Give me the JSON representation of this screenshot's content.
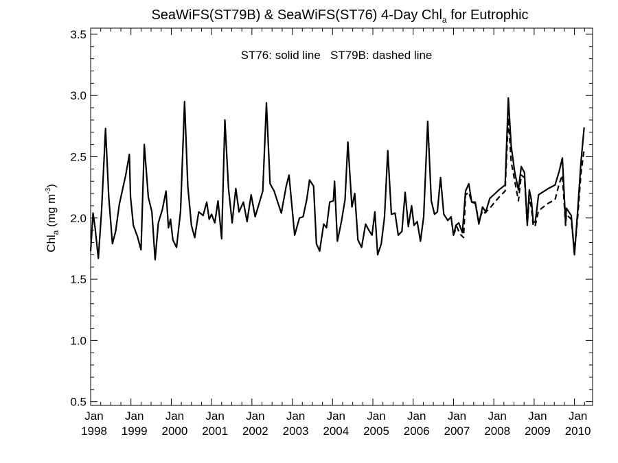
{
  "chart_data": {
    "type": "line",
    "title": {
      "prefix": "SeaWiFS(ST79B) & SeaWiFS(ST76) 4-Day Chl",
      "subscript": "a",
      "suffix": " for Eutrophic"
    },
    "annotation": "ST76: solid line   ST79B: dashed line",
    "ylabel": {
      "main": "Chl",
      "subscript": "a",
      "units_open": " (mg m",
      "units_sup": "-3",
      "units_close": ")"
    },
    "ylim": [
      0.47,
      3.55
    ],
    "yticks": [
      0.5,
      1.0,
      1.5,
      2.0,
      2.5,
      3.0,
      3.5
    ],
    "ytick_labels": [
      "0.5",
      "1.0",
      "1.5",
      "2.0",
      "2.5",
      "3.0",
      "3.5"
    ],
    "xlim": [
      1998.0,
      2010.45
    ],
    "xticks": [
      {
        "value": 1998,
        "month": "Jan",
        "year": "1998"
      },
      {
        "value": 1999,
        "month": "Jan",
        "year": "1999"
      },
      {
        "value": 2000,
        "month": "Jan",
        "year": "2000"
      },
      {
        "value": 2001,
        "month": "Jan",
        "year": "2001"
      },
      {
        "value": 2002,
        "month": "Jan",
        "year": "2002"
      },
      {
        "value": 2003,
        "month": "Jan",
        "year": "2003"
      },
      {
        "value": 2004,
        "month": "Jan",
        "year": "2004"
      },
      {
        "value": 2005,
        "month": "Jan",
        "year": "2005"
      },
      {
        "value": 2006,
        "month": "Jan",
        "year": "2006"
      },
      {
        "value": 2007,
        "month": "Jan",
        "year": "2007"
      },
      {
        "value": 2008,
        "month": "Jan",
        "year": "2008"
      },
      {
        "value": 2009,
        "month": "Jan",
        "year": "2009"
      },
      {
        "value": 2010,
        "month": "Jan",
        "year": "2010"
      }
    ],
    "grid": false,
    "series": [
      {
        "name": "ST76",
        "style": "solid",
        "color": "#000000",
        "points": [
          [
            1998.0,
            1.73
          ],
          [
            1998.06,
            2.04
          ],
          [
            1998.11,
            1.92
          ],
          [
            1998.19,
            1.67
          ],
          [
            1998.27,
            2.06
          ],
          [
            1998.37,
            2.73
          ],
          [
            1998.45,
            2.17
          ],
          [
            1998.54,
            1.79
          ],
          [
            1998.62,
            1.89
          ],
          [
            1998.71,
            2.11
          ],
          [
            1998.87,
            2.35
          ],
          [
            1998.96,
            2.52
          ],
          [
            1998.99,
            2.17
          ],
          [
            1999.06,
            1.94
          ],
          [
            1999.16,
            1.85
          ],
          [
            1999.25,
            1.74
          ],
          [
            1999.33,
            2.6
          ],
          [
            1999.43,
            2.17
          ],
          [
            1999.52,
            2.05
          ],
          [
            1999.6,
            1.66
          ],
          [
            1999.68,
            1.96
          ],
          [
            1999.78,
            2.07
          ],
          [
            1999.87,
            2.22
          ],
          [
            1999.93,
            1.92
          ],
          [
            1999.98,
            1.99
          ],
          [
            2000.04,
            1.82
          ],
          [
            2000.13,
            1.76
          ],
          [
            2000.23,
            2.05
          ],
          [
            2000.33,
            2.95
          ],
          [
            2000.41,
            2.26
          ],
          [
            2000.5,
            1.94
          ],
          [
            2000.58,
            1.84
          ],
          [
            2000.68,
            2.05
          ],
          [
            2000.79,
            2.02
          ],
          [
            2000.88,
            2.13
          ],
          [
            2000.94,
            1.99
          ],
          [
            2001.0,
            2.03
          ],
          [
            2001.08,
            1.96
          ],
          [
            2001.16,
            2.14
          ],
          [
            2001.25,
            1.83
          ],
          [
            2001.33,
            2.8
          ],
          [
            2001.42,
            2.24
          ],
          [
            2001.51,
            1.96
          ],
          [
            2001.6,
            2.24
          ],
          [
            2001.68,
            2.05
          ],
          [
            2001.79,
            2.13
          ],
          [
            2001.88,
            1.97
          ],
          [
            2001.98,
            2.19
          ],
          [
            2002.08,
            2.01
          ],
          [
            2002.18,
            2.12
          ],
          [
            2002.27,
            2.22
          ],
          [
            2002.36,
            2.94
          ],
          [
            2002.45,
            2.28
          ],
          [
            2002.55,
            2.22
          ],
          [
            2002.65,
            2.12
          ],
          [
            2002.73,
            2.04
          ],
          [
            2002.85,
            2.26
          ],
          [
            2002.92,
            2.35
          ],
          [
            2003.0,
            2.07
          ],
          [
            2003.06,
            1.86
          ],
          [
            2003.18,
            2.0
          ],
          [
            2003.27,
            2.01
          ],
          [
            2003.36,
            2.15
          ],
          [
            2003.43,
            2.31
          ],
          [
            2003.53,
            2.26
          ],
          [
            2003.6,
            1.79
          ],
          [
            2003.68,
            1.73
          ],
          [
            2003.78,
            1.95
          ],
          [
            2003.85,
            1.92
          ],
          [
            2003.93,
            2.13
          ],
          [
            2004.02,
            2.14
          ],
          [
            2004.05,
            2.3
          ],
          [
            2004.12,
            1.81
          ],
          [
            2004.22,
            1.97
          ],
          [
            2004.31,
            2.15
          ],
          [
            2004.38,
            2.62
          ],
          [
            2004.48,
            2.09
          ],
          [
            2004.55,
            2.2
          ],
          [
            2004.63,
            1.82
          ],
          [
            2004.72,
            1.76
          ],
          [
            2004.82,
            1.95
          ],
          [
            2004.9,
            1.9
          ],
          [
            2004.98,
            1.86
          ],
          [
            2005.05,
            2.05
          ],
          [
            2005.12,
            1.7
          ],
          [
            2005.21,
            1.79
          ],
          [
            2005.29,
            2.01
          ],
          [
            2005.37,
            2.55
          ],
          [
            2005.46,
            2.03
          ],
          [
            2005.55,
            2.04
          ],
          [
            2005.63,
            1.86
          ],
          [
            2005.72,
            1.89
          ],
          [
            2005.8,
            2.21
          ],
          [
            2005.88,
            1.93
          ],
          [
            2005.96,
            2.1
          ],
          [
            2006.02,
            1.94
          ],
          [
            2006.1,
            1.97
          ],
          [
            2006.18,
            1.81
          ],
          [
            2006.26,
            2.01
          ],
          [
            2006.36,
            2.79
          ],
          [
            2006.45,
            2.14
          ],
          [
            2006.53,
            2.03
          ],
          [
            2006.6,
            2.05
          ],
          [
            2006.68,
            2.33
          ],
          [
            2006.76,
            2.03
          ],
          [
            2006.86,
            1.98
          ],
          [
            2006.94,
            2.01
          ],
          [
            2007.0,
            1.86
          ],
          [
            2007.06,
            1.94
          ],
          [
            2007.13,
            1.96
          ],
          [
            2007.22,
            1.88
          ],
          [
            2007.3,
            2.22
          ],
          [
            2007.38,
            2.28
          ],
          [
            2007.45,
            2.13
          ],
          [
            2007.54,
            2.13
          ],
          [
            2007.63,
            1.95
          ],
          [
            2007.72,
            2.09
          ],
          [
            2007.8,
            2.05
          ],
          [
            2007.9,
            2.16
          ],
          [
            2008.0,
            2.19
          ],
          [
            2008.13,
            2.23
          ],
          [
            2008.28,
            2.27
          ],
          [
            2008.36,
            2.98
          ],
          [
            2008.43,
            2.59
          ],
          [
            2008.52,
            2.37
          ],
          [
            2008.61,
            2.23
          ],
          [
            2008.68,
            2.42
          ],
          [
            2008.76,
            2.37
          ],
          [
            2008.83,
            1.94
          ],
          [
            2008.88,
            2.23
          ],
          [
            2008.93,
            2.15
          ],
          [
            2008.98,
            1.96
          ],
          [
            2009.03,
            1.97
          ],
          [
            2009.11,
            2.19
          ],
          [
            2009.35,
            2.24
          ],
          [
            2009.52,
            2.27
          ],
          [
            2009.62,
            2.38
          ],
          [
            2009.7,
            2.49
          ],
          [
            2009.78,
            1.96
          ],
          [
            2009.8,
            2.08
          ],
          [
            2009.92,
            2.02
          ],
          [
            2010.0,
            1.7
          ],
          [
            2010.08,
            2.06
          ],
          [
            2010.16,
            2.45
          ],
          [
            2010.24,
            2.74
          ]
        ]
      },
      {
        "name": "ST79B",
        "style": "dashed",
        "color": "#000000",
        "points": [
          [
            2007.0,
            1.86
          ],
          [
            2007.08,
            1.93
          ],
          [
            2007.16,
            1.87
          ],
          [
            2007.25,
            1.84
          ],
          [
            2007.3,
            2.19
          ],
          [
            2007.38,
            2.21
          ],
          [
            2007.45,
            2.13
          ],
          [
            2007.54,
            2.12
          ],
          [
            2007.63,
            1.97
          ],
          [
            2007.72,
            2.06
          ],
          [
            2007.78,
            2.04
          ],
          [
            2007.9,
            2.08
          ],
          [
            2008.0,
            2.12
          ],
          [
            2008.13,
            2.17
          ],
          [
            2008.28,
            2.22
          ],
          [
            2008.36,
            2.82
          ],
          [
            2008.43,
            2.46
          ],
          [
            2008.52,
            2.3
          ],
          [
            2008.61,
            2.14
          ],
          [
            2008.68,
            2.35
          ],
          [
            2008.76,
            2.33
          ],
          [
            2008.83,
            1.95
          ],
          [
            2008.88,
            2.16
          ],
          [
            2008.93,
            2.09
          ],
          [
            2008.98,
            1.93
          ],
          [
            2009.03,
            1.94
          ],
          [
            2009.11,
            2.06
          ],
          [
            2009.35,
            2.12
          ],
          [
            2009.52,
            2.15
          ],
          [
            2009.62,
            2.28
          ],
          [
            2009.7,
            2.35
          ],
          [
            2009.78,
            1.94
          ],
          [
            2009.8,
            2.03
          ],
          [
            2009.92,
            1.99
          ],
          [
            2010.0,
            1.72
          ],
          [
            2010.08,
            2.01
          ],
          [
            2010.16,
            2.36
          ],
          [
            2010.24,
            2.56
          ]
        ]
      }
    ]
  }
}
